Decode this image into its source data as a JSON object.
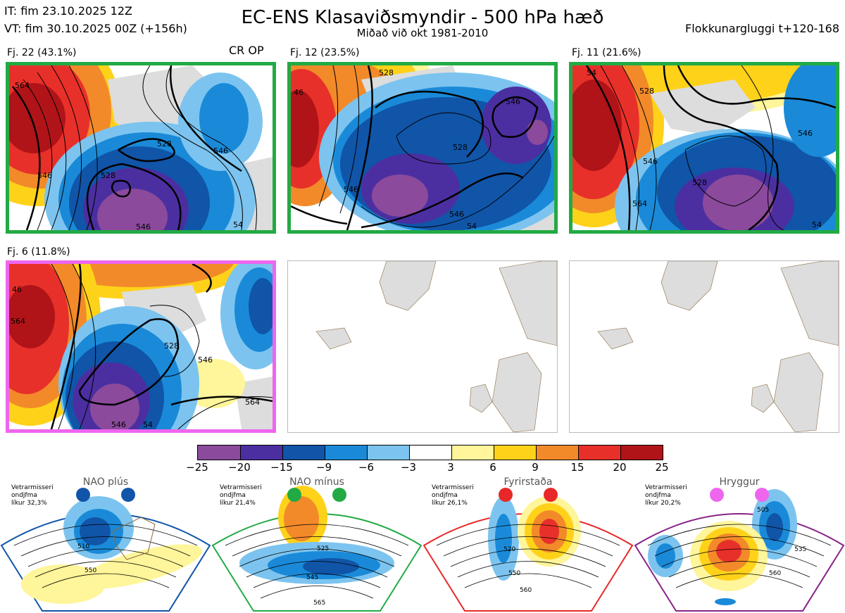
{
  "header": {
    "it_line": "IT: fim 23.10.2025 12Z",
    "vt_line": "VT: fim 30.10.2025 00Z  (+156h)",
    "title": "EC-ENS Klasaviðsmyndir - 500 hPa hæð",
    "subtitle": "Miðað við okt 1981-2010",
    "window": "Flokkunargluggi t+120-168",
    "cr_op": "CR OP"
  },
  "panels": [
    {
      "label": "Fj. 22 (43.1%)",
      "border": "#22aa44",
      "contours": [
        "564",
        "546",
        "528",
        "546",
        "546",
        "528",
        "54"
      ]
    },
    {
      "label": "Fj. 12 (23.5%)",
      "border": "#22aa44",
      "contours": [
        "46",
        "528",
        "528",
        "546",
        "546",
        "546",
        "54"
      ]
    },
    {
      "label": "Fj. 11 (21.6%)",
      "border": "#22aa44",
      "contours": [
        "54",
        "528",
        "546",
        "528",
        "564",
        "546",
        "54"
      ]
    },
    {
      "label": "Fj. 6 (11.8%)",
      "border": "#ee66ee",
      "contours": [
        "46",
        "564",
        "528",
        "546",
        "564",
        "546",
        "54"
      ]
    }
  ],
  "chart_data": {
    "type": "heatmap",
    "title": "EC-ENS Klasaviðsmyndir - 500 hPa hæð",
    "legend_ticks": [
      "−25",
      "−20",
      "−15",
      "−9",
      "−6",
      "−3",
      "3",
      "6",
      "9",
      "15",
      "20",
      "25"
    ],
    "legend_colors": [
      "#8b4a9c",
      "#4b2fa0",
      "#1055a8",
      "#1a8ad8",
      "#7cc4ef",
      "#ffffff",
      "#fff59a",
      "#ffd21a",
      "#f28a2a",
      "#e8302a",
      "#b01418"
    ],
    "clusters": [
      {
        "name": "Fj. 22",
        "percent": 43.1
      },
      {
        "name": "Fj. 12",
        "percent": 23.5
      },
      {
        "name": "Fj. 11",
        "percent": 21.6
      },
      {
        "name": "Fj. 6",
        "percent": 11.8
      }
    ]
  },
  "regimes": [
    {
      "name": "NAO plús",
      "note": [
        "Vetrarmisseri",
        "ondjfma",
        "líkur 32,3%"
      ],
      "color": "#1155aa",
      "contours": [
        "510",
        "550"
      ]
    },
    {
      "name": "NAO mínus",
      "note": [
        "Vetrarmisseri",
        "ondjfma",
        "líkur 21,4%"
      ],
      "color": "#22aa44",
      "contours": [
        "525",
        "545",
        "565"
      ]
    },
    {
      "name": "Fyrirstaða",
      "note": [
        "Vetrarmisseri",
        "ondjfma",
        "líkur 26,1%"
      ],
      "color": "#e82828",
      "contours": [
        "520",
        "550",
        "560"
      ]
    },
    {
      "name": "Hryggur",
      "note": [
        "Vetrarmisseri",
        "ondjfma",
        "líkur 20,2%"
      ],
      "color": "#ee66ee",
      "contours": [
        "505",
        "535",
        "560"
      ]
    }
  ],
  "icons": {
    "regime_dot": "cluster-marker-dot-icon"
  }
}
